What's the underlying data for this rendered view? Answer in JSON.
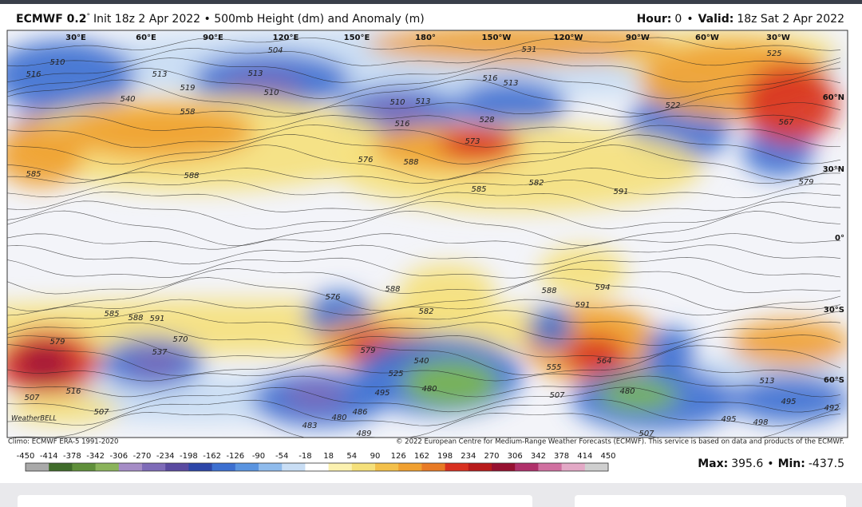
{
  "header": {
    "model": "ECMWF 0.2",
    "degree": "°",
    "subtitle": "Init 18z 2 Apr 2022 • 500mb Height (dm) and Anomaly (m)",
    "hour_label": "Hour:",
    "hour": "0",
    "separator": "•",
    "valid_label": "Valid:",
    "valid": "18z Sat 2 Apr 2022"
  },
  "map": {
    "longitude_labels": [
      "30°E",
      "60°E",
      "90°E",
      "120°E",
      "150°E",
      "180°",
      "150°W",
      "120°W",
      "90°W",
      "60°W",
      "30°W"
    ],
    "latitude_labels": [
      "60°N",
      "30°N",
      "0°",
      "30°S",
      "60°S"
    ],
    "contour_labels": [
      510,
      516,
      513,
      519,
      504,
      513,
      510,
      540,
      558,
      510,
      513,
      516,
      513,
      516,
      528,
      522,
      525,
      531,
      567,
      573,
      588,
      576,
      585,
      582,
      591,
      579,
      585,
      588,
      594,
      591,
      588,
      576,
      582,
      588,
      585,
      588,
      591,
      579,
      537,
      570,
      579,
      540,
      525,
      555,
      564,
      507,
      516,
      507,
      480,
      483,
      486,
      489,
      480,
      495,
      507,
      480,
      513,
      495,
      492,
      495,
      498,
      507
    ],
    "logo": "WeatherBELL"
  },
  "footer": {
    "climo": "Climo: ECMWF ERA-5 1991-2020",
    "copyright": "© 2022 European Centre for Medium-Range Weather Forecasts (ECMWF). This service is based on data and products of the ECMWF."
  },
  "colorbar": {
    "ticks": [
      -450,
      -414,
      -378,
      -342,
      -306,
      -270,
      -234,
      -198,
      -162,
      -126,
      -90,
      -54,
      -18,
      18,
      54,
      90,
      126,
      162,
      198,
      234,
      270,
      306,
      342,
      378,
      414,
      450
    ]
  },
  "stats": {
    "max_label": "Max:",
    "max": 395.6,
    "separator": "•",
    "min_label": "Min:",
    "min": -437.5
  }
}
